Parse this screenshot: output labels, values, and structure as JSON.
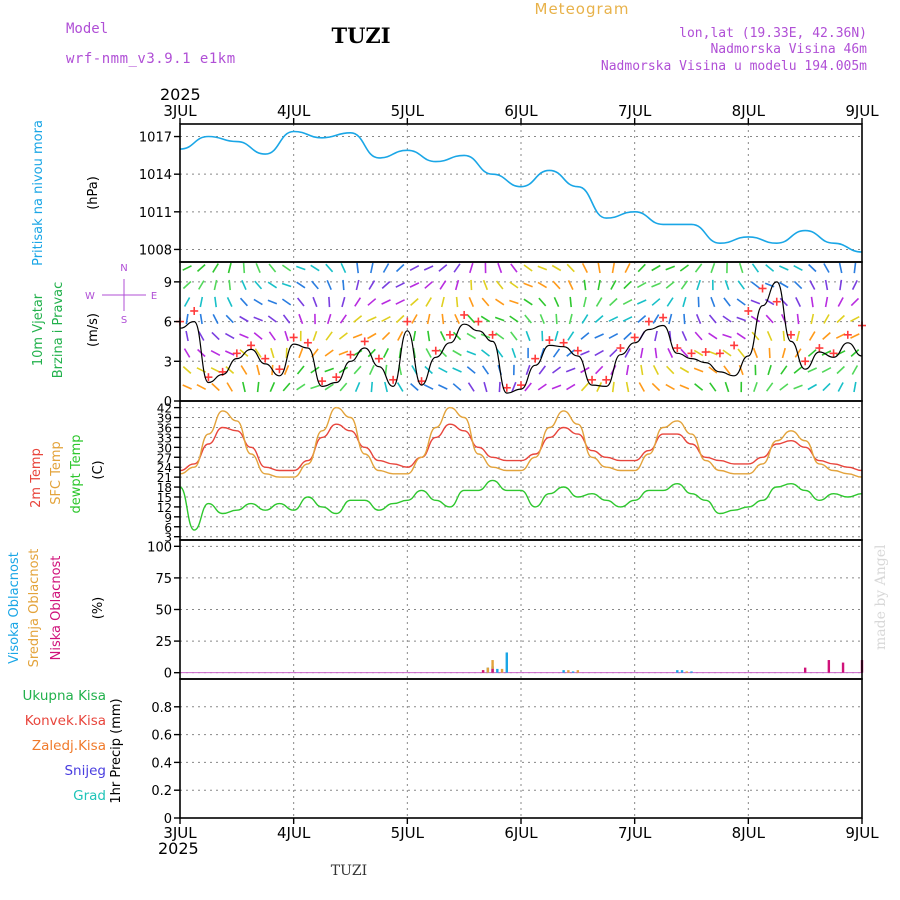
{
  "header": {
    "model_label": "Model",
    "model_name": "wrf-nmm_v3.9.1 e1km",
    "station": "TUZI",
    "chart_kind": "Meteogram",
    "lonlat": "lon,lat (19.33E, 42.36N)",
    "elevation": "Nadmorska Visina 46m",
    "model_elevation": "Nadmorska Visina u modelu 194.005m",
    "year": "2025",
    "footer_station": "TUZI",
    "credit": "made by Angel"
  },
  "colors": {
    "pressure": "#1aa6e6",
    "wind_label": "#22b14c",
    "wind_gust": "#ff3b3b",
    "wind_mean": "#000000",
    "temp2m": "#e8453c",
    "sfc_temp": "#e3a33b",
    "dewpt": "#2ec72e",
    "cloud_high": "#1aa6e6",
    "cloud_mid": "#e3a33b",
    "cloud_low": "#d0127a",
    "precip_total": "#22b14c",
    "precip_conv": "#e8453c",
    "precip_frozen": "#f07a2a",
    "snow": "#4a3ee0",
    "graupel": "#1fc4b8",
    "grid": "#888888",
    "purple": "#b04fd6"
  },
  "chart_data": [
    {
      "type": "line",
      "name": "pressure",
      "ylabel_lines": [
        "Pritisak na nivou mora",
        "(hPa)"
      ],
      "x_labels": [
        "3JUL",
        "4JUL",
        "5JUL",
        "6JUL",
        "7JUL",
        "8JUL",
        "9JUL"
      ],
      "ylim": [
        1007,
        1018
      ],
      "yticks": [
        1008,
        1011,
        1014,
        1017
      ],
      "x_hours": [
        0,
        6,
        12,
        18,
        24,
        30,
        36,
        42,
        48,
        54,
        60,
        66,
        72,
        78,
        84,
        90,
        96,
        102,
        108,
        114,
        120,
        126,
        132,
        138,
        144
      ],
      "series": [
        {
          "values": [
            1016.0,
            1017.0,
            1016.6,
            1015.6,
            1017.4,
            1016.9,
            1017.3,
            1015.3,
            1015.9,
            1015.0,
            1015.5,
            1014.0,
            1013.0,
            1014.3,
            1013.0,
            1010.5,
            1011.0,
            1010.0,
            1010.0,
            1008.5,
            1009.0,
            1008.5,
            1009.5,
            1008.5,
            1007.8
          ]
        }
      ]
    },
    {
      "type": "line",
      "name": "wind",
      "ylabel_lines": [
        "10m Vjetar",
        "Brzina i Pravac",
        "(m/s)"
      ],
      "compass": [
        "N",
        "W",
        "E",
        "S"
      ],
      "ylim": [
        0,
        10.5
      ],
      "yticks": [
        0,
        3,
        6,
        9
      ],
      "x_hours": [
        0,
        3,
        6,
        9,
        12,
        15,
        18,
        21,
        24,
        27,
        30,
        33,
        36,
        39,
        42,
        45,
        48,
        51,
        54,
        57,
        60,
        63,
        66,
        69,
        72,
        75,
        78,
        81,
        84,
        87,
        90,
        93,
        96,
        99,
        102,
        105,
        108,
        111,
        114,
        117,
        120,
        123,
        126,
        129,
        132,
        135,
        138,
        141,
        144
      ],
      "series": [
        {
          "name": "gust",
          "values": [
            6.0,
            6.8,
            1.8,
            2.2,
            3.6,
            4.2,
            3.2,
            2.4,
            4.8,
            4.4,
            1.5,
            1.8,
            3.5,
            4.5,
            3.2,
            1.6,
            6.0,
            1.5,
            3.8,
            5.0,
            6.5,
            6.0,
            5.0,
            1.0,
            1.2,
            3.2,
            4.6,
            4.4,
            3.8,
            1.6,
            1.6,
            4.0,
            4.8,
            6.0,
            6.3,
            4.0,
            3.6,
            3.7,
            3.6,
            4.2,
            6.8,
            8.5,
            7.5,
            5.0,
            3.0,
            4.0,
            3.6,
            5.0,
            5.7
          ]
        },
        {
          "name": "mean",
          "values": [
            5.5,
            6.0,
            1.4,
            2.0,
            3.2,
            3.9,
            2.8,
            1.9,
            4.3,
            4.0,
            1.1,
            1.4,
            3.0,
            4.0,
            2.6,
            1.1,
            5.3,
            1.2,
            3.3,
            4.4,
            5.8,
            5.3,
            4.5,
            0.6,
            0.9,
            2.7,
            4.2,
            4.1,
            3.4,
            1.2,
            1.1,
            3.5,
            4.4,
            5.4,
            5.7,
            3.6,
            3.2,
            2.9,
            2.2,
            1.9,
            3.4,
            7.2,
            9.0,
            4.5,
            2.4,
            3.7,
            3.3,
            4.4,
            3.4
          ]
        }
      ]
    },
    {
      "type": "line",
      "name": "temperature",
      "ylabel_lines": [
        "2m Temp",
        "SFC Temp",
        "dewpt Temp",
        "(C)"
      ],
      "ylim": [
        2,
        44
      ],
      "yticks": [
        3,
        6,
        9,
        12,
        15,
        18,
        21,
        24,
        27,
        30,
        33,
        36,
        39,
        42
      ],
      "x_hours": [
        0,
        3,
        6,
        9,
        12,
        15,
        18,
        21,
        24,
        27,
        30,
        33,
        36,
        39,
        42,
        45,
        48,
        51,
        54,
        57,
        60,
        63,
        66,
        69,
        72,
        75,
        78,
        81,
        84,
        87,
        90,
        93,
        96,
        99,
        102,
        105,
        108,
        111,
        114,
        117,
        120,
        123,
        126,
        129,
        132,
        135,
        138,
        141,
        144
      ],
      "series": [
        {
          "name": "2m",
          "values": [
            23,
            25,
            31,
            36,
            35,
            30,
            24,
            23,
            23,
            26,
            33,
            37,
            35,
            30,
            26,
            25,
            24,
            27,
            33,
            37,
            35,
            30,
            27,
            26,
            26,
            28,
            33,
            36,
            34,
            29,
            27,
            26,
            26,
            29,
            34,
            34,
            31,
            27,
            26,
            25,
            25,
            27,
            31,
            32,
            30,
            26,
            25,
            24,
            23
          ]
        },
        {
          "name": "sfc",
          "values": [
            22,
            24,
            34,
            41,
            38,
            28,
            22,
            21,
            21,
            25,
            35,
            42,
            39,
            28,
            23,
            22,
            22,
            27,
            36,
            42,
            39,
            28,
            24,
            23,
            23,
            27,
            36,
            41,
            37,
            27,
            24,
            23,
            23,
            28,
            36,
            38,
            34,
            26,
            23,
            22,
            22,
            25,
            32,
            35,
            32,
            25,
            23,
            22,
            21
          ]
        },
        {
          "name": "dewpt",
          "values": [
            18,
            5,
            13,
            10,
            11,
            13,
            11,
            13,
            11,
            15,
            12,
            10,
            14,
            14,
            11,
            13,
            14,
            17,
            14,
            12,
            17,
            17,
            20,
            17,
            17,
            12,
            16,
            18,
            15,
            16,
            14,
            12,
            14,
            17,
            17,
            19,
            16,
            14,
            10,
            11,
            12,
            14,
            18,
            19,
            17,
            14,
            16,
            15,
            16
          ]
        }
      ]
    },
    {
      "type": "bar",
      "name": "cloud",
      "ylabel_lines": [
        "Visoka Oblacnost",
        "Srednja Oblacnost",
        "Niska Oblacnost",
        "(%)"
      ],
      "ylim": [
        -5,
        105
      ],
      "yticks": [
        0,
        25,
        50,
        75,
        100
      ],
      "series": [
        {
          "name": "high",
          "x_hours": [
            65,
            66,
            67,
            69,
            81,
            83,
            105,
            106,
            108
          ],
          "values": [
            4,
            5,
            3,
            16,
            2,
            1,
            2,
            2,
            1
          ]
        },
        {
          "name": "mid",
          "x_hours": [
            64,
            65,
            66,
            68,
            82,
            84,
            107
          ],
          "values": [
            2,
            4,
            10,
            3,
            2,
            2,
            1
          ]
        },
        {
          "name": "low",
          "x_hours": [
            64,
            66,
            132,
            137,
            140,
            144
          ],
          "values": [
            2,
            3,
            4,
            10,
            8,
            10
          ]
        }
      ]
    },
    {
      "type": "bar",
      "name": "precip",
      "ylabel_lines": [
        "1hr Precip (mm)"
      ],
      "legend": [
        "Ukupna Kisa",
        "Konvek.Kisa",
        "Zaledj.Kisa",
        "Snijeg",
        "Grad"
      ],
      "ylim": [
        0,
        1
      ],
      "yticks": [
        0,
        0.2,
        0.4,
        0.6,
        0.8
      ],
      "values": []
    }
  ]
}
